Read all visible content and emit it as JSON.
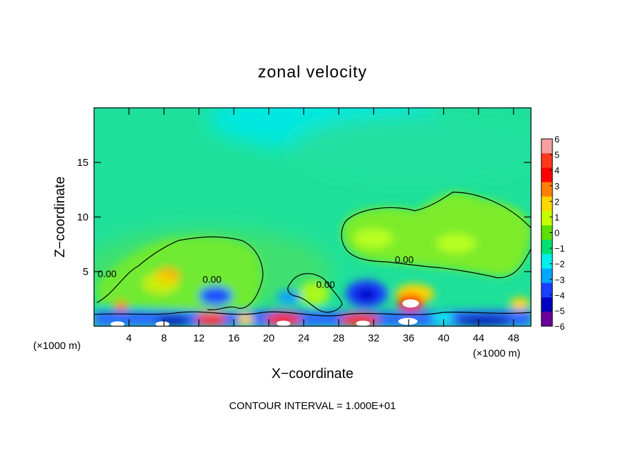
{
  "chart_data": {
    "type": "heatmap",
    "title": "zonal velocity",
    "xlabel": "X−coordinate",
    "ylabel": "Z−coordinate",
    "x_unit_left": "(×1000 m)",
    "x_unit_right": "(×1000 m)",
    "xlim": [
      0,
      50
    ],
    "ylim": [
      0,
      20
    ],
    "x_ticks": [
      4,
      8,
      12,
      16,
      20,
      24,
      28,
      32,
      36,
      40,
      44,
      48
    ],
    "y_ticks": [
      5,
      10,
      15
    ],
    "footer": "CONTOUR INTERVAL = 1.000E+01",
    "contour_labels": [
      {
        "text": "0.00",
        "x": 1.5,
        "z": 4.5
      },
      {
        "text": "0.00",
        "x": 13.5,
        "z": 4.0
      },
      {
        "text": "0.00",
        "x": 26.5,
        "z": 3.5
      },
      {
        "text": "0.00",
        "x": 35.5,
        "z": 5.8
      }
    ],
    "colorbar": {
      "levels": [
        6,
        5,
        4,
        3,
        2,
        1,
        0,
        -1,
        -2,
        -3,
        -4,
        -5,
        -6
      ],
      "tick_labels": [
        "6",
        "5",
        "4",
        "3",
        "2",
        "1",
        "0",
        "−1",
        "−2",
        "−3",
        "−4",
        "−5",
        "−6"
      ],
      "colors": [
        "#f4a0a0",
        "#ff3a1c",
        "#ff0000",
        "#ff8000",
        "#ffd700",
        "#c8ff00",
        "#5ae000",
        "#00e070",
        "#00f0f0",
        "#00a8ff",
        "#1a40ff",
        "#0000c0",
        "#6a009a"
      ]
    }
  }
}
